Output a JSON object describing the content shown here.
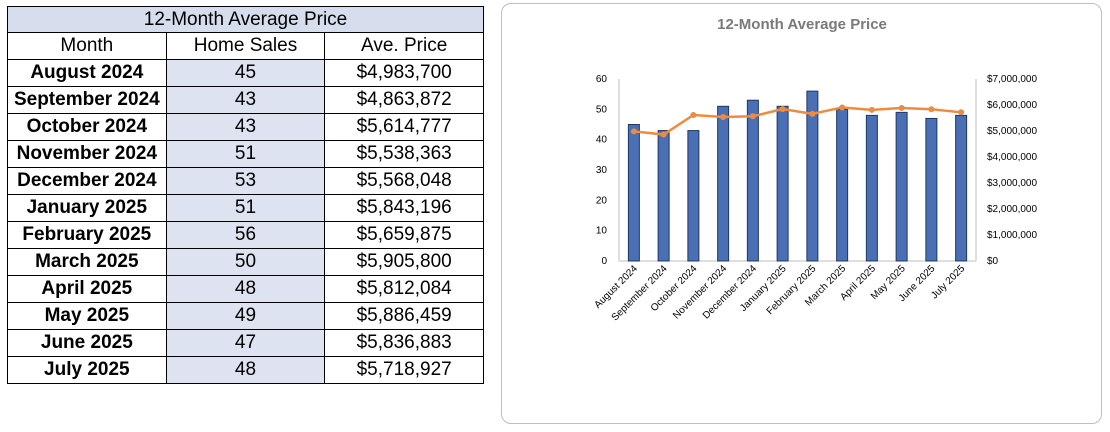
{
  "table": {
    "title": "12-Month Average Price",
    "headers": [
      "Month",
      "Home Sales",
      "Ave. Price"
    ],
    "rows": [
      {
        "month": "August 2024",
        "sales": "45",
        "price": "$4,983,700"
      },
      {
        "month": "September 2024",
        "sales": "43",
        "price": "$4,863,872"
      },
      {
        "month": "October 2024",
        "sales": "43",
        "price": "$5,614,777"
      },
      {
        "month": "November 2024",
        "sales": "51",
        "price": "$5,538,363"
      },
      {
        "month": "December 2024",
        "sales": "53",
        "price": "$5,568,048"
      },
      {
        "month": "January 2025",
        "sales": "51",
        "price": "$5,843,196"
      },
      {
        "month": "February 2025",
        "sales": "56",
        "price": "$5,659,875"
      },
      {
        "month": "March 2025",
        "sales": "50",
        "price": "$5,905,800"
      },
      {
        "month": "April 2025",
        "sales": "48",
        "price": "$5,812,084"
      },
      {
        "month": "May 2025",
        "sales": "49",
        "price": "$5,886,459"
      },
      {
        "month": "June 2025",
        "sales": "47",
        "price": "$5,836,883"
      },
      {
        "month": "July 2025",
        "sales": "48",
        "price": "$5,718,927"
      }
    ]
  },
  "chart_data": {
    "type": "bar",
    "title": "12-Month Average Price",
    "categories": [
      "August 2024",
      "September 2024",
      "October 2024",
      "November 2024",
      "December 2024",
      "January 2025",
      "February 2025",
      "March 2025",
      "April 2025",
      "May 2025",
      "June 2025",
      "July 2025"
    ],
    "series": [
      {
        "type": "bar",
        "axis": "left",
        "values": [
          45,
          43,
          43,
          51,
          53,
          51,
          56,
          50,
          48,
          49,
          47,
          48
        ]
      },
      {
        "type": "line",
        "axis": "right",
        "values": [
          4983700,
          4863872,
          5614777,
          5538363,
          5568048,
          5843196,
          5659875,
          5905800,
          5812084,
          5886459,
          5836883,
          5718927
        ]
      }
    ],
    "y_left": {
      "min": 0,
      "max": 60,
      "ticks": [
        "0",
        "10",
        "20",
        "30",
        "40",
        "50",
        "60"
      ]
    },
    "y_right": {
      "min": 0,
      "max": 7000000,
      "ticks": [
        "$0",
        "$1,000,000",
        "$2,000,000",
        "$3,000,000",
        "$4,000,000",
        "$5,000,000",
        "$6,000,000",
        "$7,000,000"
      ]
    },
    "grid": false,
    "colors": {
      "bar": "#4a6fb5",
      "bar_stroke": "#1f3864",
      "line": "#ed8b3f",
      "title": "#7a7a7a"
    }
  }
}
